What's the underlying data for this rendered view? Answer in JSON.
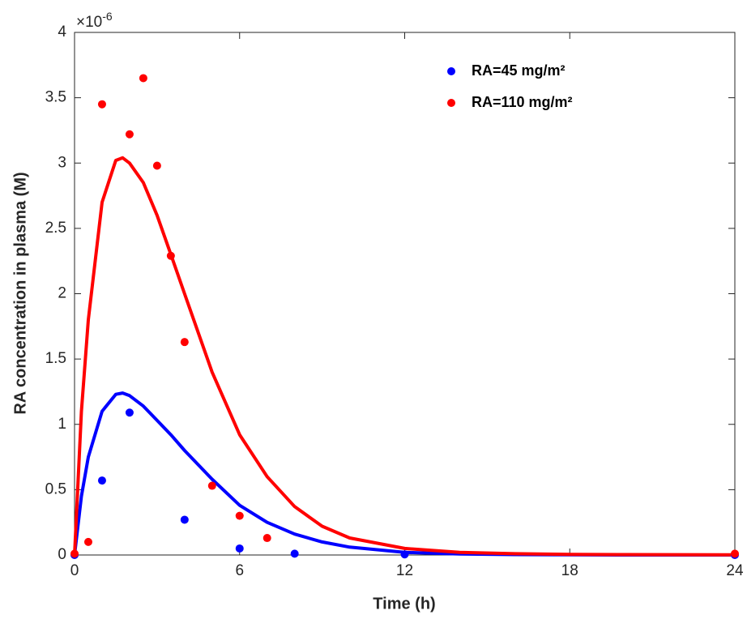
{
  "chart_data": {
    "type": "scatter",
    "xlabel": "Time (h)",
    "ylabel": "RA concentration in plasma (M)",
    "y_multiplier": {
      "base": "×10",
      "exponent": "-6"
    },
    "xlim": [
      0,
      24
    ],
    "ylim": [
      0,
      4
    ],
    "xticks": [
      0,
      6,
      12,
      18,
      24
    ],
    "yticks": [
      0,
      0.5,
      1,
      1.5,
      2,
      2.5,
      3,
      3.5,
      4
    ],
    "legend": "upper-right",
    "series": [
      {
        "name": "RA=45 mg/m²",
        "color": "#0000ff",
        "x": [
          0,
          1,
          2,
          4,
          6,
          8,
          12,
          24
        ],
        "values": [
          0,
          0.57,
          1.09,
          0.27,
          0.05,
          0.01,
          0.005,
          0
        ]
      },
      {
        "name": "RA=110 mg/m²",
        "color": "#ff0000",
        "x": [
          0,
          0.5,
          1,
          2,
          2.5,
          3,
          3.5,
          4,
          5,
          6,
          7,
          24
        ],
        "values": [
          0.01,
          0.1,
          3.45,
          3.22,
          3.65,
          2.98,
          2.29,
          1.63,
          0.53,
          0.3,
          0.13,
          0.01
        ]
      }
    ],
    "curves": [
      {
        "color": "#0000ff",
        "x": [
          0,
          0.25,
          0.5,
          1,
          1.5,
          1.75,
          2,
          2.5,
          3,
          3.5,
          4,
          5,
          6,
          7,
          8,
          9,
          10,
          12,
          14,
          16,
          18,
          20,
          24
        ],
        "values": [
          0,
          0.45,
          0.75,
          1.1,
          1.23,
          1.24,
          1.22,
          1.14,
          1.03,
          0.92,
          0.8,
          0.58,
          0.38,
          0.25,
          0.16,
          0.1,
          0.06,
          0.02,
          0.008,
          0.003,
          0.001,
          0,
          0
        ]
      },
      {
        "color": "#ff0000",
        "x": [
          0,
          0.25,
          0.5,
          1,
          1.5,
          1.75,
          2,
          2.5,
          3,
          3.5,
          4,
          5,
          6,
          7,
          8,
          9,
          10,
          12,
          14,
          16,
          18,
          20,
          24
        ],
        "values": [
          0,
          1.1,
          1.8,
          2.7,
          3.02,
          3.04,
          3.0,
          2.85,
          2.6,
          2.3,
          2.0,
          1.4,
          0.92,
          0.6,
          0.37,
          0.22,
          0.13,
          0.05,
          0.02,
          0.01,
          0.005,
          0.003,
          0.001
        ]
      }
    ]
  }
}
